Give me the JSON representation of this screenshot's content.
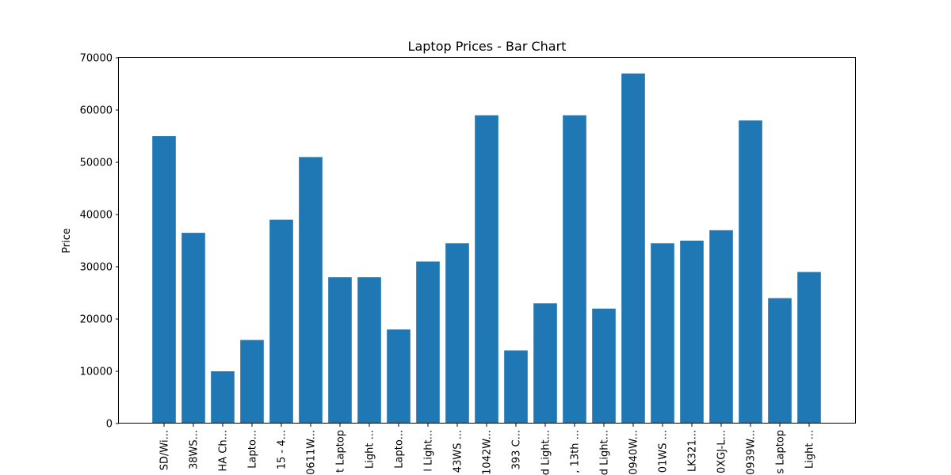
{
  "chart_data": {
    "type": "bar",
    "title": "Laptop Prices - Bar Chart",
    "xlabel": "",
    "ylabel": "Price",
    "ylim": [
      0,
      70000
    ],
    "yticks": [
      0,
      10000,
      20000,
      30000,
      40000,
      50000,
      60000,
      70000
    ],
    "grid": false,
    "bar_color": "#1f77b4",
    "categories": [
      "SD/Wi...",
      "38WS...",
      "HA Ch...",
      "Lapto...",
      "15 - 4...",
      "0611W...",
      "t Laptop",
      "Light ...",
      "Lapto...",
      "l Light...",
      "43WS ...",
      "1042W...",
      "393 C...",
      "d Light...",
      ", 13th ...",
      "d Light...",
      "0940W...",
      "01WS ...",
      "LK321...",
      "0XGJ-L...",
      "0939W...",
      "s Laptop",
      "Light ..."
    ],
    "values": [
      55000,
      36500,
      10000,
      16000,
      39000,
      51000,
      28000,
      28000,
      18000,
      31000,
      34500,
      59000,
      14000,
      23000,
      59000,
      22000,
      67000,
      34500,
      35000,
      37000,
      58000,
      24000,
      29000
    ]
  }
}
